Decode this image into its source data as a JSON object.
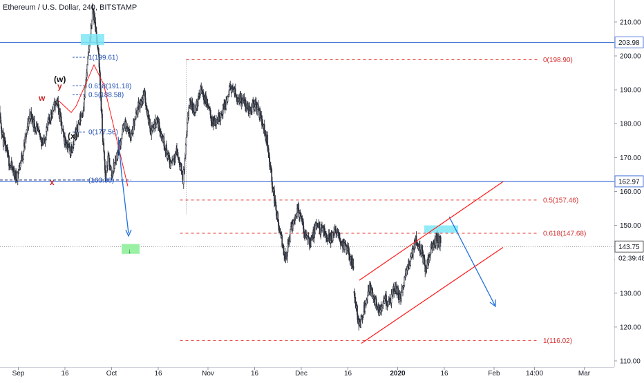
{
  "header": {
    "symbol_title": "Ethereum / U.S. Dollar, 240, BITSTAMP"
  },
  "colors": {
    "candle": "#2a2e39",
    "blue_line": "#4a74d8",
    "red_dash": "#e53935",
    "red_channel": "#ff1a1a",
    "wave_red": "#b71c1c",
    "highlight_cyan": "#7ee8f6",
    "highlight_green": "#8ff09a",
    "axis_text": "#131722",
    "fib_blue": "#1f4fb4",
    "price_label_bg": "#ffffff"
  },
  "chart_data": {
    "type": "candlestick",
    "y_axis": {
      "ylim": [
        104.5,
        216.5
      ],
      "ticks": [
        110,
        120,
        130,
        140,
        150,
        160,
        170,
        180,
        190,
        200,
        210
      ],
      "tick_labels": [
        "110.00",
        "120.00",
        "130.00",
        "140.00",
        "150.00",
        "160.00",
        "170.00",
        "180.00",
        "190.00",
        "200.00",
        "210.00"
      ]
    },
    "x_axis": {
      "labels": [
        "Sep",
        "16",
        "Oct",
        "16",
        "Nov",
        "16",
        "Dec",
        "16",
        "2020",
        "16",
        "Feb",
        "14:00",
        "Mar"
      ],
      "bold": [
        "2020"
      ]
    },
    "price_labels": [
      {
        "price": 203.98,
        "text": "203.98",
        "style": "blue"
      },
      {
        "price": 162.97,
        "text": "162.97",
        "style": "blue"
      },
      {
        "price": 143.75,
        "text": "143.75",
        "style": "dark"
      },
      {
        "price": 140.3,
        "text": "02:39:48",
        "style": "plain"
      }
    ],
    "horizontal_lines": [
      {
        "price": 203.98,
        "style": "solid-blue"
      },
      {
        "price": 162.97,
        "style": "solid-blue"
      },
      {
        "price": 143.75,
        "style": "dotted-gray"
      }
    ],
    "fib_levels_right": [
      {
        "price": 198.9,
        "text": "0(198.90)"
      },
      {
        "price": 157.46,
        "text": "0.5(157.46)"
      },
      {
        "price": 147.68,
        "text": "0.618(147.68)"
      },
      {
        "price": 116.02,
        "text": "1(116.02)"
      }
    ],
    "fib_levels_left": [
      {
        "price": 199.61,
        "text": "1(199.61)"
      },
      {
        "price": 191.18,
        "text": "0.618(191.18)"
      },
      {
        "price": 188.58,
        "text": "0.5(188.58)"
      },
      {
        "price": 177.56,
        "text": "0(177.56)"
      },
      {
        "price": 163.38,
        "text": "(163.38)"
      }
    ],
    "wave_labels": [
      {
        "text": "(w)",
        "color": "dark"
      },
      {
        "text": "y",
        "color": "red"
      },
      {
        "text": "w",
        "color": "red"
      },
      {
        "text": "(x)",
        "color": "dark"
      },
      {
        "text": "x",
        "color": "red"
      }
    ],
    "close_segments": [
      {
        "from": "Aug 25",
        "to": "Sep 22",
        "path": [
          190,
          175,
          168,
          164,
          172,
          183,
          178,
          174,
          182,
          187,
          176,
          172,
          178,
          185
        ]
      },
      {
        "from": "Sep 22",
        "to": "Oct 1",
        "path": [
          185,
          195,
          205,
          214,
          207,
          198,
          178,
          164,
          170,
          165
        ]
      },
      {
        "from": "Oct 1",
        "to": "Oct 24",
        "path": [
          165,
          172,
          180,
          176,
          184,
          189,
          178,
          181,
          175,
          168,
          172,
          164
        ]
      },
      {
        "from": "Oct 24",
        "to": "Nov 18",
        "path": [
          163,
          186,
          184,
          190,
          186,
          180,
          182,
          185,
          191,
          188,
          187,
          184,
          186,
          182
        ]
      },
      {
        "from": "Nov 18",
        "to": "Dec 18",
        "path": [
          182,
          175,
          160,
          148,
          140,
          150,
          155,
          148,
          145,
          150,
          148,
          146,
          148,
          145,
          142,
          138
        ]
      },
      {
        "from": "Dec 18",
        "to": "Jan 15",
        "path": [
          130,
          120,
          126,
          132,
          128,
          124,
          128,
          127,
          132,
          128,
          135,
          140,
          146,
          143,
          137,
          143,
          146,
          145
        ]
      }
    ]
  }
}
